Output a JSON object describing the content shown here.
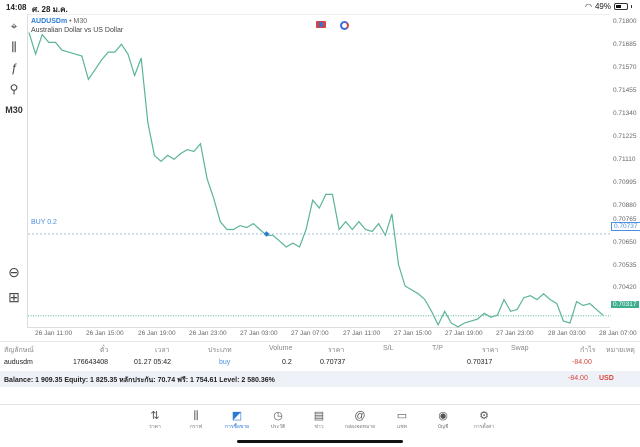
{
  "status_bar": {
    "time": "14:08",
    "date": "ศ. 28 ม.ค.",
    "battery": "49%"
  },
  "toolbar": {
    "items": [
      {
        "name": "crosshair-icon",
        "glyph": "⌖"
      },
      {
        "name": "candlestick-icon",
        "glyph": "⫼"
      },
      {
        "name": "indicator-icon",
        "glyph": "ƒ"
      },
      {
        "name": "objects-icon",
        "glyph": "⚲"
      }
    ],
    "timeframe": "M30",
    "zoom_out_glyph": "⊖",
    "add_glyph": "⊞"
  },
  "chart": {
    "symbol": "AUDUSDm",
    "separator": "•",
    "timeframe": "M30",
    "description": "Australian Dollar vs US Dollar",
    "buy_label": "BUY 0.2",
    "line_color": "#5bb592",
    "buy_line_color": "#9ab8d8",
    "current_line_color": "#3fae8f"
  },
  "chart_data": {
    "type": "line",
    "title": "AUDUSDm • M30",
    "subtitle": "Australian Dollar vs US Dollar",
    "y_ticks": [
      "0.71800",
      "0.71685",
      "0.71570",
      "0.71455",
      "0.71340",
      "0.71225",
      "0.71110",
      "0.70995",
      "0.70880",
      "0.70765",
      "0.70650",
      "0.70535",
      "0.70420"
    ],
    "x_ticks": [
      "26 Jan 11:00",
      "26 Jan 15:00",
      "26 Jan 19:00",
      "26 Jan 23:00",
      "27 Jan 03:00",
      "27 Jan 07:00",
      "27 Jan 11:00",
      "27 Jan 15:00",
      "27 Jan 19:00",
      "27 Jan 23:00",
      "28 Jan 03:00",
      "28 Jan 07:00"
    ],
    "ylim": [
      0.7028,
      0.7184
    ],
    "buy_price": "0.70737",
    "current_price": "0.70317",
    "series": [
      {
        "name": "AUDUSDm close",
        "values": [
          0.7177,
          0.7166,
          0.7176,
          0.7172,
          0.7172,
          0.7168,
          0.7167,
          0.7166,
          0.7165,
          0.7153,
          0.7158,
          0.7163,
          0.7167,
          0.7167,
          0.7171,
          0.7166,
          0.7155,
          0.7164,
          0.7131,
          0.7114,
          0.7111,
          0.7114,
          0.7112,
          0.7115,
          0.7117,
          0.7116,
          0.712,
          0.7102,
          0.7092,
          0.708,
          0.7076,
          0.7076,
          0.7078,
          0.7077,
          0.7079,
          0.7076,
          0.7073,
          0.7073,
          0.707,
          0.7067,
          0.7069,
          0.7067,
          0.7076,
          0.7091,
          0.7087,
          0.7094,
          0.7094,
          0.7076,
          0.708,
          0.7076,
          0.708,
          0.7076,
          0.7075,
          0.7079,
          0.7073,
          0.7084,
          0.7058,
          0.7047,
          0.7045,
          0.7043,
          0.704,
          0.7034,
          0.7027,
          0.7034,
          0.7028,
          0.7026,
          0.7028,
          0.7029,
          0.703,
          0.7033,
          0.7031,
          0.7032,
          0.704,
          0.7034,
          0.7035,
          0.7041,
          0.7042,
          0.704,
          0.7043,
          0.704,
          0.7038,
          0.7029,
          0.7028,
          0.7039,
          0.7037,
          0.7038,
          0.7035,
          0.7032
        ]
      }
    ]
  },
  "table": {
    "headers": [
      "สัญลักษณ์",
      "ตั๋ว",
      "เวลา",
      "ประเภท",
      "Volume",
      "ราคา",
      "S/L",
      "T/P",
      "ราคา",
      "Swap",
      "กำไร",
      "หมายเหตุ"
    ],
    "row": {
      "symbol": "audusdm",
      "ticket": "176643408",
      "time": "01.27 05:42",
      "type": "buy",
      "volume": "0.2",
      "open_price": "0.70737",
      "sl": "",
      "tp": "",
      "current_price": "0.70317",
      "swap": "",
      "profit": "-84.00"
    }
  },
  "balance": {
    "text": "Balance: 1 909.35 Equity: 1 825.35 หลักประกัน: 70.74 ฟรี: 1 754.61 Level: 2 580.36%",
    "profit": "-84.00",
    "currency": "USD"
  },
  "tabbar": {
    "tabs": [
      {
        "label": "ราคา",
        "glyph": "⇅",
        "name": "tab-quotes"
      },
      {
        "label": "กราฟ",
        "glyph": "⫼",
        "name": "tab-chart"
      },
      {
        "label": "การซื้อขาย",
        "glyph": "◩",
        "name": "tab-trade",
        "active": true
      },
      {
        "label": "ประวัติ",
        "glyph": "◷",
        "name": "tab-history"
      },
      {
        "label": "ข่าว",
        "glyph": "▤",
        "name": "tab-news"
      },
      {
        "label": "กล่องจดหมาย",
        "glyph": "@",
        "name": "tab-mailbox"
      },
      {
        "label": "แชท",
        "glyph": "▭",
        "name": "tab-chat"
      },
      {
        "label": "บัญชี",
        "glyph": "◉",
        "name": "tab-account"
      },
      {
        "label": "การตั้งค่า",
        "glyph": "⚙",
        "name": "tab-settings"
      }
    ]
  }
}
